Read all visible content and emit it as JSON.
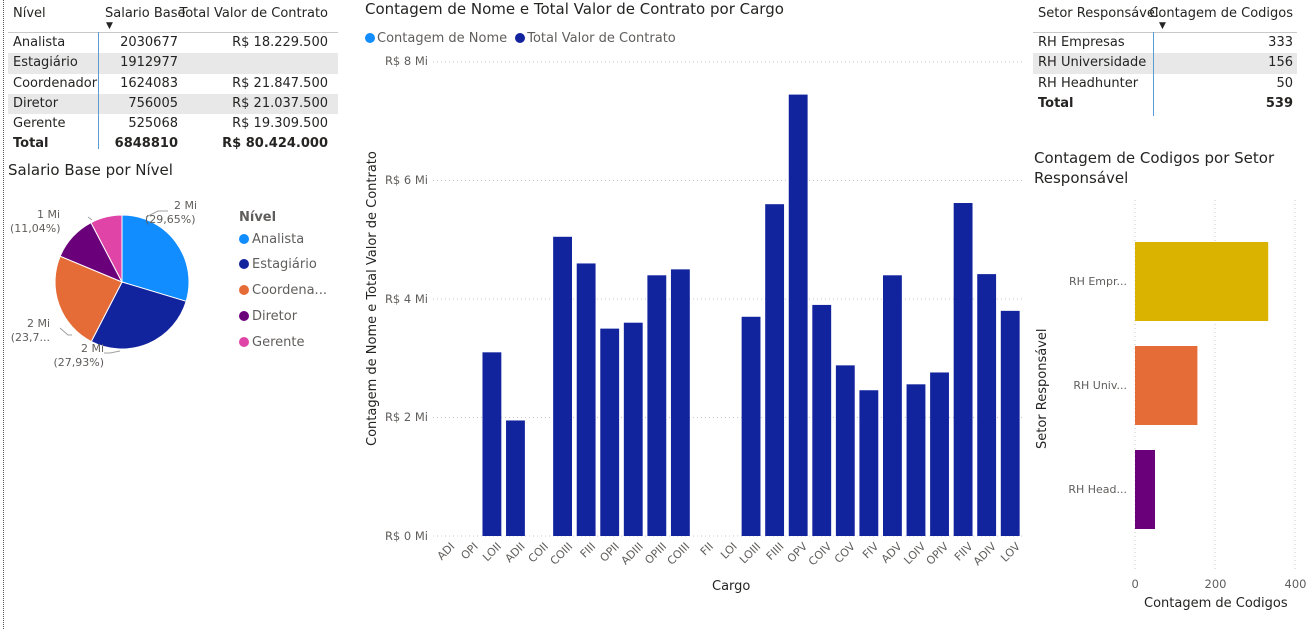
{
  "table_nivel": {
    "headers": [
      "Nível",
      "Salario Base",
      "Total Valor de Contrato"
    ],
    "rows": [
      [
        "Analista",
        "2030677",
        "R$ 18.229.500"
      ],
      [
        "Estagiário",
        "1912977",
        ""
      ],
      [
        "Coordenador",
        "1624083",
        "R$ 21.847.500"
      ],
      [
        "Diretor",
        "756005",
        "R$ 21.037.500"
      ],
      [
        "Gerente",
        "525068",
        "R$ 19.309.500"
      ]
    ],
    "total": [
      "Total",
      "6848810",
      "R$ 80.424.000"
    ]
  },
  "pie": {
    "title": "Salario Base por Nível",
    "legend_title": "Nível",
    "legend": [
      {
        "label": "Analista",
        "color": "#118dff"
      },
      {
        "label": "Estagiário",
        "color": "#12239e"
      },
      {
        "label": "Coordena...",
        "color": "#e66c37"
      },
      {
        "label": "Diretor",
        "color": "#6b007b"
      },
      {
        "label": "Gerente",
        "color": "#e044a7"
      }
    ],
    "labels": {
      "analista": [
        "2 Mi",
        "(29,65%)"
      ],
      "estagiario": [
        "2 Mi",
        "(27,93%)"
      ],
      "coordenador": [
        "2 Mi",
        "(23,7..."
      ],
      "diretor": [
        "1 Mi",
        "(11,04%)"
      ]
    },
    "chart_data": {
      "type": "pie",
      "categories": [
        "Analista",
        "Estagiário",
        "Coordenador",
        "Diretor",
        "Gerente"
      ],
      "values": [
        2030677,
        1912977,
        1624083,
        756005,
        525068
      ],
      "percents": [
        29.65,
        27.93,
        23.71,
        11.04,
        7.67
      ]
    }
  },
  "main_chart": {
    "title": "Contagem de Nome e Total Valor de Contrato por Cargo",
    "legend": [
      {
        "label": "Contagem de Nome",
        "color": "#118dff"
      },
      {
        "label": "Total Valor de Contrato",
        "color": "#12239e"
      }
    ],
    "ylabel": "Contagem de Nome e Total Valor de Contrato",
    "xlabel": "Cargo",
    "yticks": [
      "R$ 8 Mi",
      "R$ 6 Mi",
      "R$ 4 Mi",
      "R$ 2 Mi",
      "R$ 0 Mi"
    ],
    "chart_data": {
      "type": "bar",
      "categories": [
        "ADI",
        "OPI",
        "LOII",
        "ADII",
        "COII",
        "COIII",
        "FIII",
        "OPII",
        "ADIII",
        "OPIII",
        "COIII",
        "FII",
        "LOI",
        "LOIII",
        "FIIII",
        "OPV",
        "COIV",
        "COV",
        "FIV",
        "ADV",
        "LOIV",
        "OPIV",
        "FIIV",
        "ADIV",
        "LOV"
      ],
      "series": [
        {
          "name": "Contagem de Nome",
          "values": [
            0,
            0,
            0,
            0,
            0,
            0,
            0,
            0,
            0,
            0,
            0,
            0,
            0,
            0,
            0,
            0,
            0,
            0,
            0,
            0,
            0,
            0,
            0,
            0,
            0
          ]
        },
        {
          "name": "Total Valor de Contrato",
          "values": [
            0,
            0,
            3.1,
            1.95,
            0,
            5.05,
            4.6,
            3.5,
            3.6,
            4.4,
            4.5,
            0,
            0,
            3.7,
            5.6,
            7.45,
            3.9,
            2.88,
            2.46,
            4.4,
            2.56,
            2.76,
            5.62,
            4.42,
            3.8
          ]
        }
      ],
      "ylim": [
        0,
        8
      ],
      "unit": "Mi"
    }
  },
  "table_setor": {
    "headers": [
      "Setor Responsável",
      "Contagem de Codigos"
    ],
    "rows": [
      [
        "RH Empresas",
        "333"
      ],
      [
        "RH Universidade",
        "156"
      ],
      [
        "RH Headhunter",
        "50"
      ]
    ],
    "total": [
      "Total",
      "539"
    ]
  },
  "bar_chart": {
    "title": "Contagem de Codigos por Setor Responsável",
    "ylabel": "Setor Responsável",
    "xlabel": "Contagem de Codigos",
    "xticks": [
      "0",
      "200",
      "400"
    ],
    "chart_data": {
      "type": "bar",
      "orientation": "horizontal",
      "categories": [
        "RH Empr...",
        "RH Univ...",
        "RH Head..."
      ],
      "values": [
        333,
        156,
        50
      ],
      "colors": [
        "#d9b300",
        "#e66c37",
        "#6b007b"
      ],
      "xlim": [
        0,
        400
      ]
    }
  }
}
